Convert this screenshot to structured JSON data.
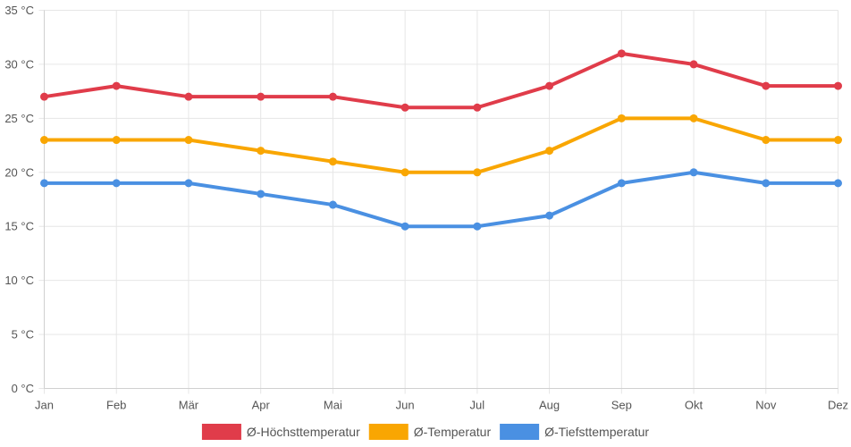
{
  "chart_data": {
    "type": "line",
    "title": "",
    "xlabel": "",
    "ylabel": "",
    "categories": [
      "Jan",
      "Feb",
      "Mär",
      "Apr",
      "Mai",
      "Jun",
      "Jul",
      "Aug",
      "Sep",
      "Okt",
      "Nov",
      "Dez"
    ],
    "y_ticks": [
      0,
      5,
      10,
      15,
      20,
      25,
      30,
      35
    ],
    "y_tick_labels": [
      "0 °C",
      "5 °C",
      "10 °C",
      "15 °C",
      "20 °C",
      "25 °C",
      "30 °C",
      "35 °C"
    ],
    "ylim": [
      0,
      35
    ],
    "grid": true,
    "legend_position": "bottom",
    "series": [
      {
        "name": "Ø-Höchsttemperatur",
        "color": "#e03c4a",
        "values": [
          27,
          28,
          27,
          27,
          27,
          26,
          26,
          28,
          31,
          30,
          28,
          28
        ]
      },
      {
        "name": "Ø-Temperatur",
        "color": "#f9a602",
        "values": [
          23,
          23,
          23,
          22,
          21,
          20,
          20,
          22,
          25,
          25,
          23,
          23
        ]
      },
      {
        "name": "Ø-Tiefsttemperatur",
        "color": "#4a90e2",
        "values": [
          19,
          19,
          19,
          18,
          17,
          15,
          15,
          16,
          19,
          20,
          19,
          19
        ]
      }
    ]
  }
}
